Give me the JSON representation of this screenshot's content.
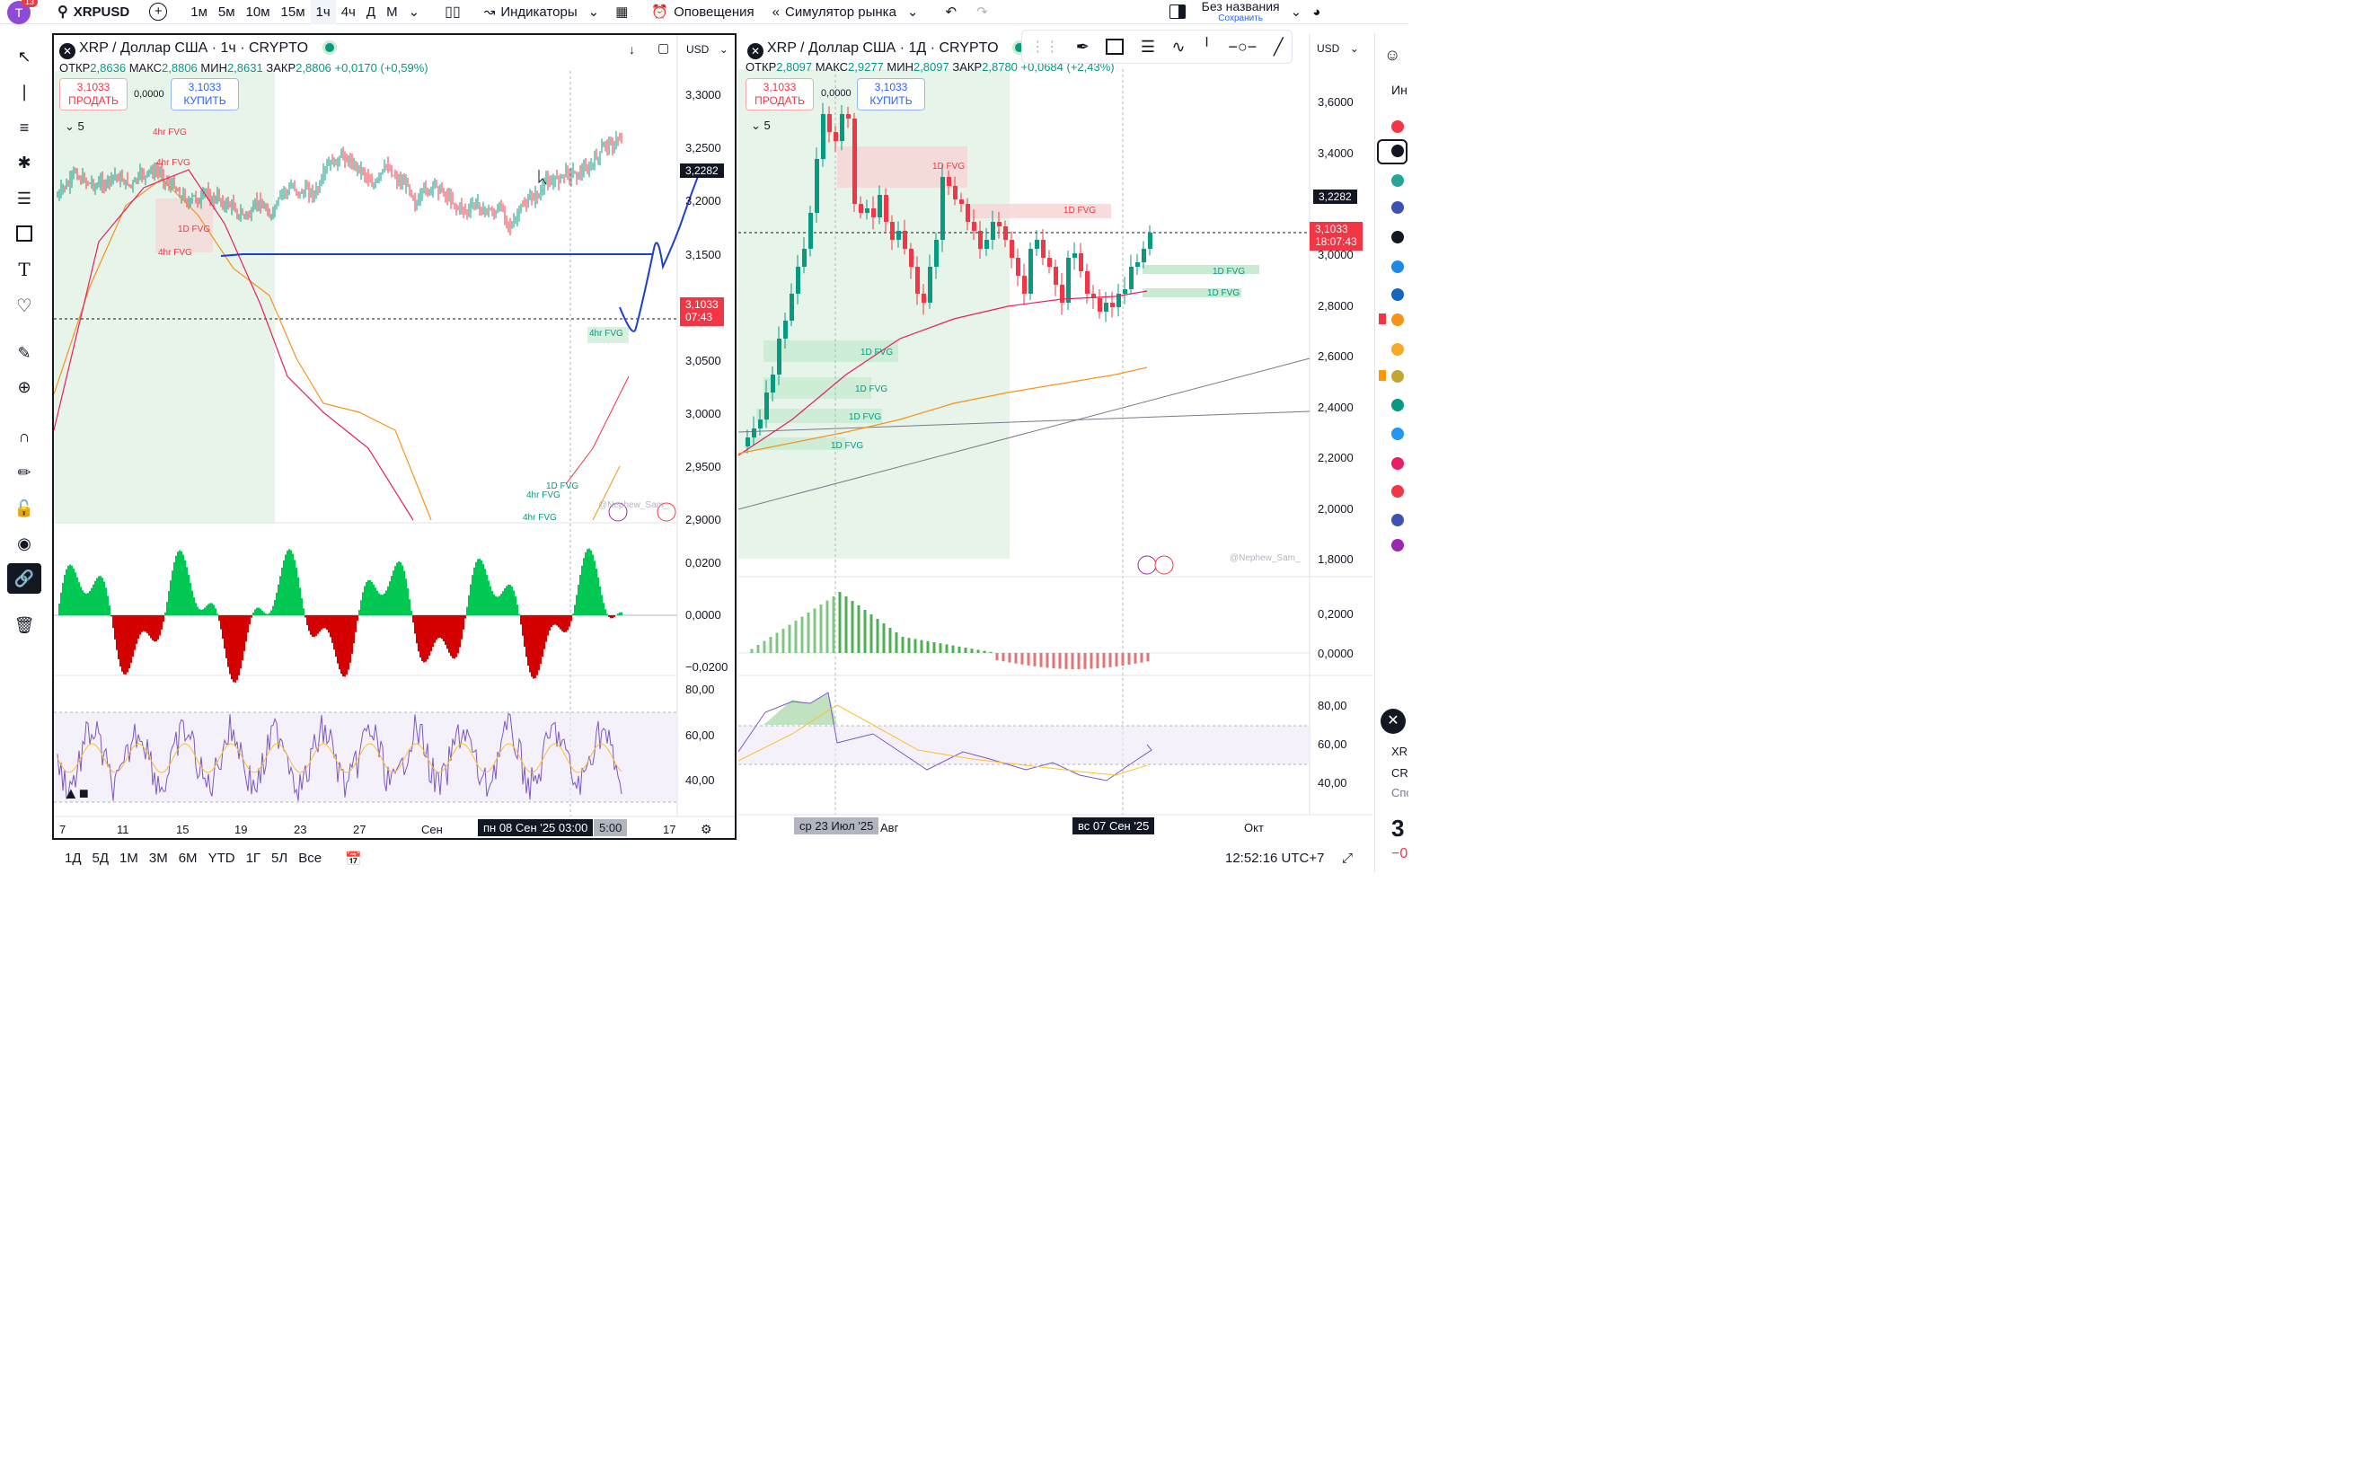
{
  "topbar": {
    "avatar_letter": "T",
    "notif_count": "13",
    "symbol": "XRPUSD",
    "intervals": [
      "1м",
      "5м",
      "10м",
      "15м",
      "1ч",
      "4ч",
      "Д",
      "М"
    ],
    "active_interval": "1ч",
    "indicators_label": "Индикаторы",
    "alerts_label": "Оповещения",
    "replay_label": "Симулятор рынка",
    "layout_name": "Без названия",
    "save_label": "Сохранить"
  },
  "left_chart": {
    "title": "XRP / Доллар США · 1ч · CRYPTO",
    "currency": "USD",
    "ohlc": {
      "o_label": "ОТКР",
      "o": "2,8636",
      "h_label": "МАКС",
      "h": "2,8806",
      "l_label": "МИН",
      "l": "2,8631",
      "c_label": "ЗАКР",
      "c": "2,8806",
      "change": "+0,0170 (+0,59%)"
    },
    "sell_price": "3,1033",
    "sell_label": "ПРОДАТЬ",
    "spread": "0,0000",
    "buy_price": "3,1033",
    "buy_label": "КУПИТЬ",
    "indicators_count": "5",
    "price_axis": [
      "3,3000",
      "3,2500",
      "3,2000",
      "3,1500",
      "3,0500",
      "3,0000",
      "2,9500",
      "2,9000"
    ],
    "price_tag_blue": "3,2282",
    "price_tag_last": "3,1033",
    "price_tag_timer": "07:43",
    "macd_axis": [
      "0,0200",
      "0,0000",
      "−0,0200"
    ],
    "rsi_axis": [
      "80,00",
      "60,00",
      "40,00"
    ],
    "time_axis": [
      "7",
      "11",
      "15",
      "19",
      "23",
      "27",
      "Сен",
      "17"
    ],
    "time_pill": "пн 08 Сен '25   03:00",
    "time_pill_tail": "5:00",
    "fvg_labels": [
      "4hr FVG",
      "4hr FVG",
      "1D FVG",
      "4hr FVG",
      "4hr FVG",
      "4hr FVG",
      "1D FVG",
      "4hr FVG"
    ],
    "watermark": "@Nephew_Sam_"
  },
  "right_chart": {
    "title": "XRP / Доллар США · 1Д · CRYPTO",
    "currency": "USD",
    "ohlc": {
      "o_label": "ОТКР",
      "o": "2,8097",
      "h_label": "МАКС",
      "h": "2,9277",
      "l_label": "МИН",
      "l": "2,8097",
      "c_label": "ЗАКР",
      "c": "2,8780",
      "change": "+0,0684 (+2,43%)"
    },
    "sell_price": "3,1033",
    "sell_label": "ПРОДАТЬ",
    "spread": "0,0000",
    "buy_price": "3,1033",
    "buy_label": "КУПИТЬ",
    "indicators_count": "5",
    "price_axis": [
      "3,6000",
      "3,4000",
      "3,0000",
      "2,8000",
      "2,6000",
      "2,4000",
      "2,2000",
      "2,0000",
      "1,8000"
    ],
    "price_tag_blue": "3,2282",
    "price_tag_last": "3,1033",
    "price_tag_timer": "18:07:43",
    "macd_axis": [
      "0,2000",
      "0,0000"
    ],
    "rsi_axis": [
      "80,00",
      "60,00",
      "40,00"
    ],
    "time_axis": [
      "Авг",
      "Окт"
    ],
    "time_pill1": "ср 23 Июл '25",
    "time_pill2": "вс 07 Сен '25",
    "fvg_labels": [
      "1D FVG",
      "1D FVG",
      "1D FVG",
      "1D FVG",
      "1D FVG",
      "1D FVG",
      "1D FVG",
      "1D FVG"
    ],
    "watermark": "@Nephew_Sam_"
  },
  "bottombar": {
    "ranges": [
      "1Д",
      "5Д",
      "1М",
      "3М",
      "6М",
      "YTD",
      "1Г",
      "5Л",
      "Все"
    ],
    "clock": "12:52:16 UTC+7"
  },
  "rightpanel": {
    "label_top": "Ин",
    "label_xrp": "XRP",
    "label_cry": "CRY",
    "label_spo": "Спо",
    "big_digit": "3",
    "neg": "−0"
  },
  "colors": {
    "up": "#089981",
    "down": "#f23645",
    "blue": "#2962ff",
    "dark": "#131722",
    "fvg_green": "#c8ebd2",
    "fvg_red": "#f7d5d5"
  }
}
